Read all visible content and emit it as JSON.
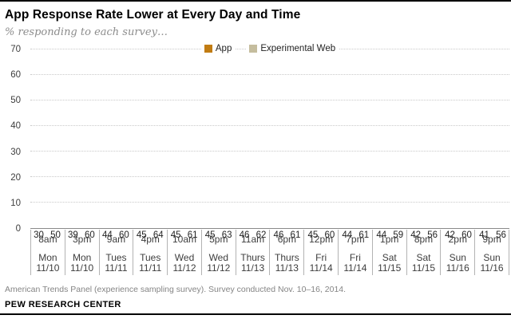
{
  "header": {
    "title": "App Response Rate Lower at Every Day and Time",
    "subtitle": "% responding to each survey…"
  },
  "colors": {
    "app_bar": "#C17C12",
    "web_bar": "#C5BD9E",
    "gridline": "#C9C9C9",
    "axis_line": "#8A8A8A"
  },
  "chart_data": {
    "type": "bar",
    "title": "App Response Rate Lower at Every Day and Time",
    "subtitle": "% responding to each survey…",
    "ylabel": "",
    "xlabel": "",
    "ylim": [
      0,
      70
    ],
    "yticks": [
      0,
      10,
      20,
      30,
      40,
      50,
      60,
      70
    ],
    "grid": "horizontal-dotted",
    "legend_position": "top-center",
    "categories": [
      {
        "time": "8am",
        "day": "Mon",
        "date": "11/10"
      },
      {
        "time": "3pm",
        "day": "Mon",
        "date": "11/10"
      },
      {
        "time": "9am",
        "day": "Tues",
        "date": "11/11"
      },
      {
        "time": "4pm",
        "day": "Tues",
        "date": "11/11"
      },
      {
        "time": "10am",
        "day": "Wed",
        "date": "11/12"
      },
      {
        "time": "5pm",
        "day": "Wed",
        "date": "11/12"
      },
      {
        "time": "11am",
        "day": "Thurs",
        "date": "11/13"
      },
      {
        "time": "6pm",
        "day": "Thurs",
        "date": "11/13"
      },
      {
        "time": "12pm",
        "day": "Fri",
        "date": "11/14"
      },
      {
        "time": "7pm",
        "day": "Fri",
        "date": "11/14"
      },
      {
        "time": "1pm",
        "day": "Sat",
        "date": "11/15"
      },
      {
        "time": "8pm",
        "day": "Sat",
        "date": "11/15"
      },
      {
        "time": "2pm",
        "day": "Sun",
        "date": "11/16"
      },
      {
        "time": "9pm",
        "day": "Sun",
        "date": "11/16"
      }
    ],
    "series": [
      {
        "name": "App",
        "color": "#C17C12",
        "values": [
          30,
          39,
          44,
          45,
          45,
          45,
          46,
          46,
          45,
          44,
          44,
          42,
          42,
          41
        ]
      },
      {
        "name": "Experimental Web",
        "color": "#C5BD9E",
        "values": [
          50,
          60,
          60,
          64,
          61,
          63,
          62,
          61,
          60,
          61,
          59,
          56,
          60,
          56
        ]
      }
    ]
  },
  "footer": {
    "note": "American Trends Panel (experience sampling survey). Survey conducted Nov. 10–16, 2014.",
    "source": "PEW RESEARCH CENTER"
  }
}
